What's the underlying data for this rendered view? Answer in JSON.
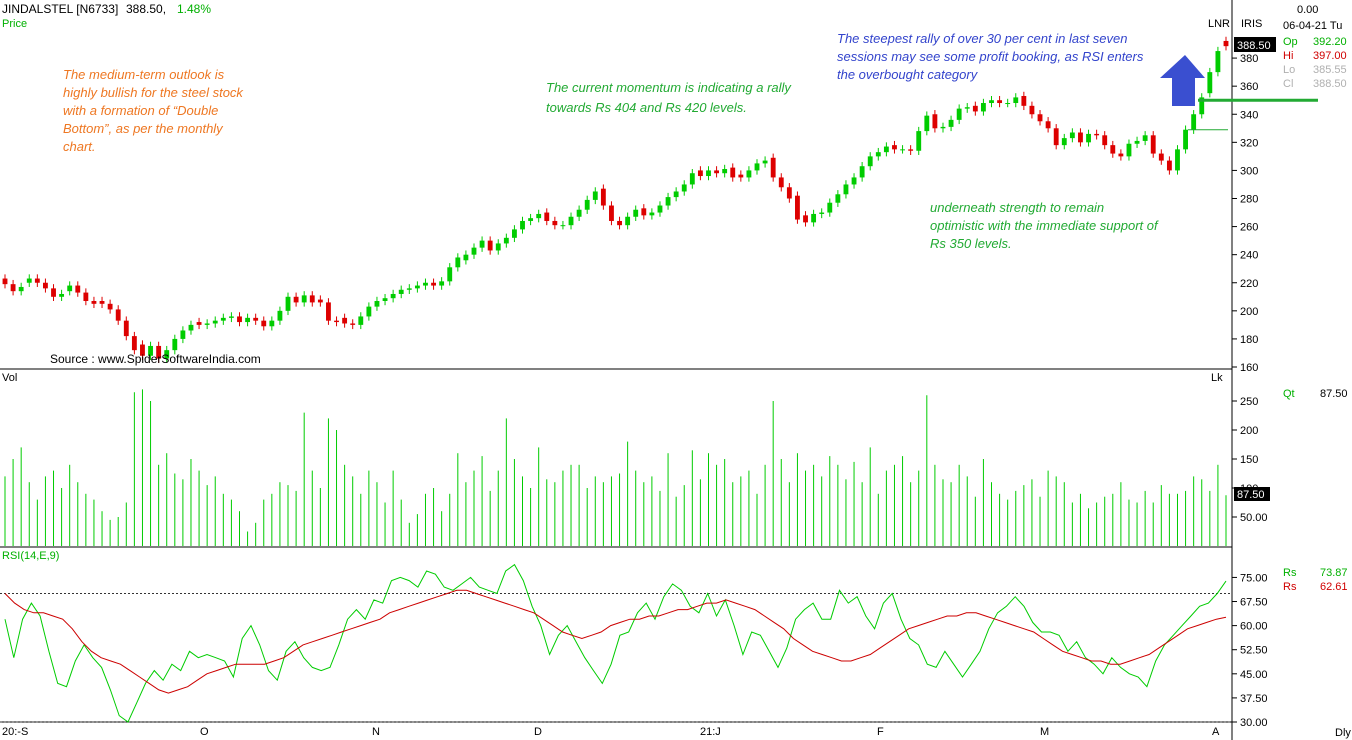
{
  "header": {
    "symbol": "JINDALSTEL [N6733]",
    "last": "388.50,",
    "change": "1.48%",
    "price_label": "Price",
    "lnr": "LNR",
    "iris": "IRIS",
    "top_value": "0.00",
    "date": "06-04-21 Tu",
    "ohlc": [
      {
        "label": "Op",
        "value": "392.20",
        "color": "#00b000"
      },
      {
        "label": "Hi",
        "value": "397.00",
        "color": "#d00000"
      },
      {
        "label": "Lo",
        "value": "385.55",
        "color": "#b0b0b0"
      },
      {
        "label": "Cl",
        "value": "388.50",
        "color": "#b0b0b0"
      }
    ],
    "last_price_tag": "388.50"
  },
  "source": "Source : www.SpiderSoftwareIndia.com",
  "annotations": {
    "outlook": [
      "The medium-term outlook is",
      "highly bullish for the steel stock",
      "with a formation of “Double",
      "Bottom”, as per the monthly",
      "chart."
    ],
    "momentum": [
      "The current momentum is indicating a rally",
      "towards Rs 404 and Rs 420 levels."
    ],
    "rally": [
      "The steepest rally of over 30 per cent in last seven",
      "sessions may see some profit booking, as RSI enters",
      "the overbought category"
    ],
    "support": [
      "underneath strength to remain",
      "optimistic with the immediate support of",
      "Rs 350 levels."
    ]
  },
  "volume_panel": {
    "title": "Vol",
    "unit": "Lk",
    "qt_label": "Qt",
    "qt_value": "87.50",
    "last_tag": "87.50"
  },
  "rsi_panel": {
    "title": "RSI(14,E,9)",
    "rs1_label": "Rs",
    "rs1_value": "73.87",
    "rs2_label": "Rs",
    "rs2_value": "62.61"
  },
  "x_axis": {
    "labels": [
      "20:-S",
      "O",
      "N",
      "D",
      "21:J",
      "F",
      "M",
      "A"
    ],
    "right_label": "Dly"
  },
  "colors": {
    "up": "#00cc00",
    "down": "#dd0000",
    "arrow": "#3a4fd0",
    "support_line": "#22aa33",
    "orange_text": "#ee7722",
    "green_text": "#22aa33",
    "blue_text": "#3344cc"
  },
  "chart_data": [
    {
      "type": "candlestick",
      "title": "JINDALSTEL daily",
      "ylim": [
        160,
        400
      ],
      "yticks": [
        160,
        180,
        200,
        220,
        240,
        260,
        280,
        300,
        320,
        340,
        360,
        380
      ],
      "support_level": 350,
      "minor_line_level": 329,
      "closes": [
        219,
        214,
        217,
        223,
        220,
        216,
        210,
        212,
        218,
        213,
        207,
        205,
        205,
        201,
        193,
        182,
        172,
        168,
        175,
        166,
        172,
        180,
        186,
        190,
        190,
        191,
        193,
        195,
        196,
        192,
        195,
        193,
        189,
        193,
        200,
        210,
        206,
        211,
        206,
        206,
        193,
        192,
        191,
        190,
        196,
        203,
        207,
        209,
        212,
        215,
        216,
        218,
        220,
        218,
        221,
        231,
        238,
        240,
        245,
        250,
        243,
        248,
        252,
        258,
        264,
        266,
        269,
        264,
        261,
        261,
        267,
        272,
        279,
        285,
        275,
        264,
        261,
        267,
        272,
        268,
        270,
        275,
        281,
        285,
        290,
        298,
        296,
        300,
        298,
        301,
        295,
        295,
        300,
        305,
        307,
        295,
        288,
        280,
        265,
        263,
        269,
        270,
        277,
        283,
        290,
        295,
        303,
        310,
        313,
        317,
        315,
        315,
        314,
        328,
        339,
        330,
        331,
        336,
        344,
        345,
        342,
        348,
        350,
        348,
        348,
        352,
        346,
        340,
        335,
        330,
        318,
        323,
        327,
        320,
        326,
        325,
        318,
        312,
        310,
        319,
        321,
        325,
        312,
        307,
        300,
        315,
        329,
        340,
        352,
        370,
        385,
        388.5
      ],
      "opens": [
        223,
        219,
        214,
        220,
        223,
        220,
        216,
        210,
        214,
        218,
        213,
        207,
        207,
        205,
        201,
        193,
        182,
        176,
        168,
        175,
        166,
        172,
        180,
        186,
        192,
        190,
        191,
        193,
        195,
        196,
        192,
        195,
        193,
        189,
        193,
        200,
        210,
        206,
        211,
        208,
        206,
        193,
        195,
        191,
        190,
        196,
        203,
        207,
        209,
        212,
        215,
        216,
        218,
        220,
        218,
        221,
        231,
        236,
        240,
        245,
        250,
        243,
        248,
        252,
        258,
        264,
        266,
        270,
        264,
        261,
        261,
        267,
        272,
        279,
        287,
        275,
        264,
        261,
        267,
        273,
        268,
        270,
        275,
        281,
        285,
        290,
        300,
        296,
        300,
        298,
        302,
        297,
        295,
        300,
        305,
        309,
        295,
        288,
        282,
        268,
        263,
        269,
        270,
        277,
        283,
        290,
        295,
        303,
        310,
        313,
        318,
        315,
        315,
        314,
        328,
        340,
        330,
        331,
        336,
        344,
        346,
        342,
        348,
        350,
        348,
        348,
        353,
        346,
        340,
        335,
        330,
        318,
        323,
        327,
        320,
        326,
        325,
        318,
        312,
        310,
        319,
        321,
        325,
        312,
        307,
        300,
        315,
        329,
        340,
        355,
        370,
        392.2
      ],
      "volumes": [
        120,
        150,
        170,
        110,
        80,
        120,
        130,
        100,
        140,
        110,
        90,
        80,
        60,
        45,
        50,
        75,
        265,
        270,
        250,
        140,
        160,
        125,
        115,
        150,
        130,
        105,
        120,
        90,
        80,
        60,
        25,
        40,
        80,
        90,
        110,
        105,
        95,
        230,
        130,
        100,
        220,
        200,
        140,
        120,
        90,
        130,
        110,
        75,
        130,
        80,
        40,
        55,
        90,
        100,
        60,
        90,
        160,
        110,
        130,
        155,
        95,
        130,
        220,
        150,
        120,
        100,
        170,
        115,
        110,
        130,
        140,
        140,
        100,
        120,
        110,
        120,
        125,
        180,
        130,
        110,
        120,
        95,
        160,
        85,
        105,
        165,
        115,
        160,
        140,
        150,
        110,
        120,
        130,
        90,
        140,
        250,
        150,
        110,
        160,
        130,
        140,
        120,
        155,
        140,
        115,
        145,
        110,
        170,
        90,
        130,
        140,
        155,
        110,
        130,
        260,
        140,
        115,
        110,
        140,
        120,
        85,
        150,
        110,
        90,
        80,
        95,
        105,
        115,
        85,
        130,
        120,
        110,
        75,
        90,
        65,
        75,
        85,
        90,
        110,
        80,
        75,
        95,
        75,
        105,
        90,
        90,
        95,
        120,
        115,
        95,
        140,
        87.5
      ],
      "rsi": [
        62,
        50,
        62,
        67,
        63,
        52,
        42,
        41,
        49,
        54,
        50,
        47,
        40,
        32,
        30,
        36,
        42,
        46,
        43,
        48,
        46,
        52,
        50,
        51,
        50,
        49,
        44,
        56,
        60,
        54,
        46,
        43,
        52,
        55,
        50,
        47,
        46,
        47,
        54,
        62,
        65,
        62,
        68,
        67,
        74,
        75,
        74,
        72,
        77,
        76,
        72,
        71,
        73,
        75,
        72,
        71,
        70,
        77,
        79,
        74,
        66,
        60,
        51,
        57,
        60,
        55,
        50,
        46,
        42,
        48,
        57,
        58,
        64,
        67,
        62,
        69,
        73,
        71,
        66,
        64,
        70,
        63,
        68,
        60,
        51,
        58,
        57,
        52,
        47,
        53,
        62,
        65,
        67,
        62,
        62,
        71,
        67,
        69,
        63,
        59,
        67,
        70,
        62,
        56,
        54,
        48,
        47,
        52,
        48,
        44,
        48,
        52,
        59,
        64,
        66,
        69,
        66,
        61,
        58,
        58,
        57,
        52,
        55,
        50,
        48,
        45,
        50,
        47,
        45,
        44,
        41,
        49,
        54,
        57,
        60,
        63,
        66,
        67,
        70,
        73.87
      ],
      "rsi_signal": [
        70,
        67,
        65,
        64,
        64,
        63,
        62,
        59,
        55,
        52,
        50,
        49,
        48,
        46,
        44,
        42,
        40,
        39,
        40,
        41,
        43,
        45,
        46,
        47,
        48,
        48,
        48,
        48,
        49,
        50,
        52,
        54,
        55,
        56,
        57,
        58,
        59,
        60,
        61,
        62,
        64,
        65,
        66,
        67,
        68,
        69,
        70,
        71,
        71,
        70,
        69,
        68,
        67,
        66,
        65,
        64,
        62,
        60,
        58,
        57,
        56,
        57,
        58,
        60,
        61,
        62,
        62,
        63,
        63,
        64,
        65,
        65,
        66,
        67,
        67,
        68,
        67,
        66,
        65,
        63,
        61,
        59,
        56,
        54,
        52,
        51,
        50,
        49,
        49,
        50,
        51,
        53,
        55,
        57,
        59,
        60,
        61,
        62,
        63,
        63,
        64,
        64,
        63,
        62,
        61,
        60,
        59,
        58,
        56,
        54,
        52,
        51,
        50,
        49,
        49,
        48,
        48,
        49,
        50,
        51,
        53,
        55,
        57,
        59,
        60,
        61,
        62,
        62.61
      ],
      "rsi_ylim": [
        30,
        77
      ],
      "rsi_yticks": [
        30.0,
        37.5,
        45.0,
        52.5,
        60.0,
        67.5,
        75.0
      ],
      "rsi_overbought": 70,
      "volume_yticks": [
        50,
        100,
        150,
        200,
        250
      ],
      "volume_ylim": [
        0,
        300
      ]
    }
  ]
}
